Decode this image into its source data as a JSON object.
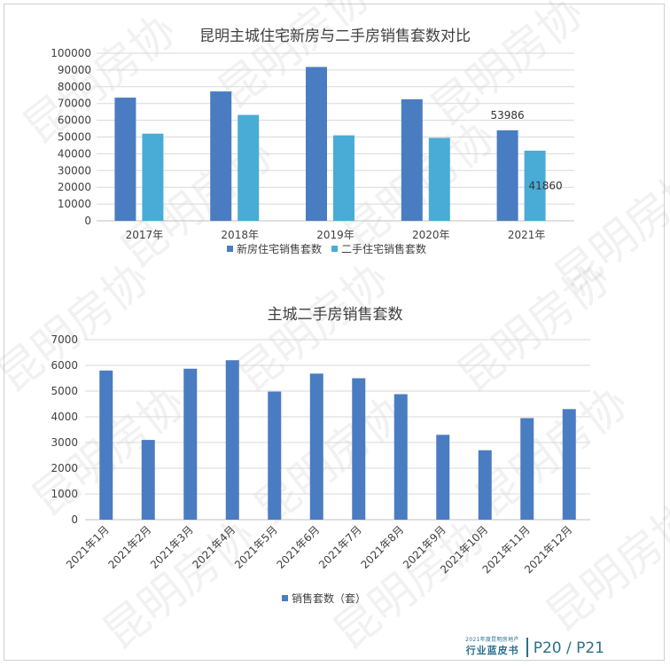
{
  "chart_data": [
    {
      "type": "bar",
      "title": "昆明主城住宅新房与二手房销售套数对比",
      "categories": [
        "2017年",
        "2018年",
        "2019年",
        "2020年",
        "2021年"
      ],
      "series": [
        {
          "name": "新房住宅销售套数",
          "values": [
            73500,
            77200,
            91800,
            72500,
            53986
          ],
          "color": "#4a7cc2"
        },
        {
          "name": "二手住宅销售套数",
          "values": [
            52000,
            63200,
            51000,
            49500,
            41860
          ],
          "color": "#49acd6"
        }
      ],
      "data_labels": [
        {
          "series": 0,
          "index": 4,
          "text": "53986"
        },
        {
          "series": 1,
          "index": 4,
          "text": "41860"
        }
      ],
      "yticks": [
        "0",
        "10000",
        "20000",
        "30000",
        "40000",
        "50000",
        "60000",
        "70000",
        "80000",
        "90000",
        "100000"
      ],
      "ylim": [
        0,
        100000
      ],
      "legend_position": "bottom",
      "grid": true
    },
    {
      "type": "bar",
      "title": "主城二手房销售套数",
      "categories": [
        "2021年1月",
        "2021年2月",
        "2021年3月",
        "2021年4月",
        "2021年5月",
        "2021年6月",
        "2021年7月",
        "2021年8月",
        "2021年9月",
        "2021年10月",
        "2021年11月",
        "2021年12月"
      ],
      "series": [
        {
          "name": "销售套数（套）",
          "values": [
            5800,
            3100,
            5870,
            6200,
            4980,
            5680,
            5500,
            4880,
            3300,
            2700,
            3950,
            4300
          ],
          "color": "#4a7cc2"
        }
      ],
      "yticks": [
        "0",
        "1000",
        "2000",
        "3000",
        "4000",
        "5000",
        "6000",
        "7000"
      ],
      "ylim": [
        0,
        7000
      ],
      "legend_position": "bottom",
      "grid": true
    }
  ],
  "watermark": "昆明房协",
  "footer": {
    "small_text": "2021年度昆明房地产",
    "book_title": "行业蓝皮书",
    "pages": "P20 / P21"
  }
}
